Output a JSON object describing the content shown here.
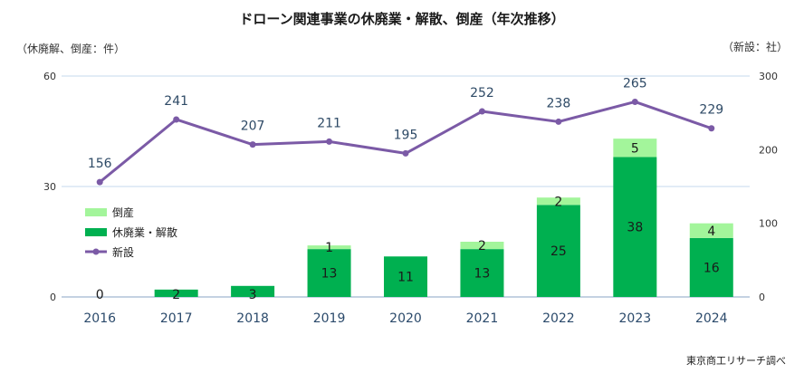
{
  "chart_data": {
    "type": "bar+line",
    "title": "ドローン関連事業の休廃業・解散、倒産（年次推移）",
    "left_axis_label": "（休廃解、倒産：件）",
    "right_axis_label": "（新設：社）",
    "left_ylim": [
      0,
      60
    ],
    "left_ticks": [
      "0",
      "30",
      "60"
    ],
    "right_ylim": [
      0,
      300
    ],
    "right_ticks": [
      "0",
      "100",
      "200",
      "300"
    ],
    "categories": [
      "2016",
      "2017",
      "2018",
      "2019",
      "2020",
      "2021",
      "2022",
      "2023",
      "2024"
    ],
    "series": [
      {
        "name": "休廃業・解散",
        "kind": "bar",
        "axis": "left",
        "values": [
          0,
          2,
          3,
          13,
          11,
          13,
          25,
          38,
          16
        ],
        "labels": [
          "0",
          "2",
          "3",
          "13",
          "11",
          "13",
          "25",
          "38",
          "16"
        ]
      },
      {
        "name": "倒産",
        "kind": "bar",
        "axis": "left",
        "values": [
          0,
          0,
          0,
          1,
          0,
          2,
          2,
          5,
          4
        ],
        "labels": [
          "",
          "",
          "",
          "1",
          "",
          "2",
          "2",
          "5",
          "4"
        ]
      },
      {
        "name": "新設",
        "kind": "line",
        "axis": "right",
        "values": [
          156,
          241,
          207,
          211,
          195,
          252,
          238,
          265,
          229
        ],
        "labels": [
          "156",
          "241",
          "207",
          "211",
          "195",
          "252",
          "238",
          "265",
          "229"
        ]
      }
    ],
    "legend": [
      "倒産",
      "休廃業・解散",
      "新設"
    ],
    "source": "東京商工リサーチ調べ",
    "colors": {
      "closure": "#00b050",
      "bankruptcy": "#a3f59b",
      "new": "#7b5aa6",
      "grid": "#c6d9ec"
    }
  }
}
